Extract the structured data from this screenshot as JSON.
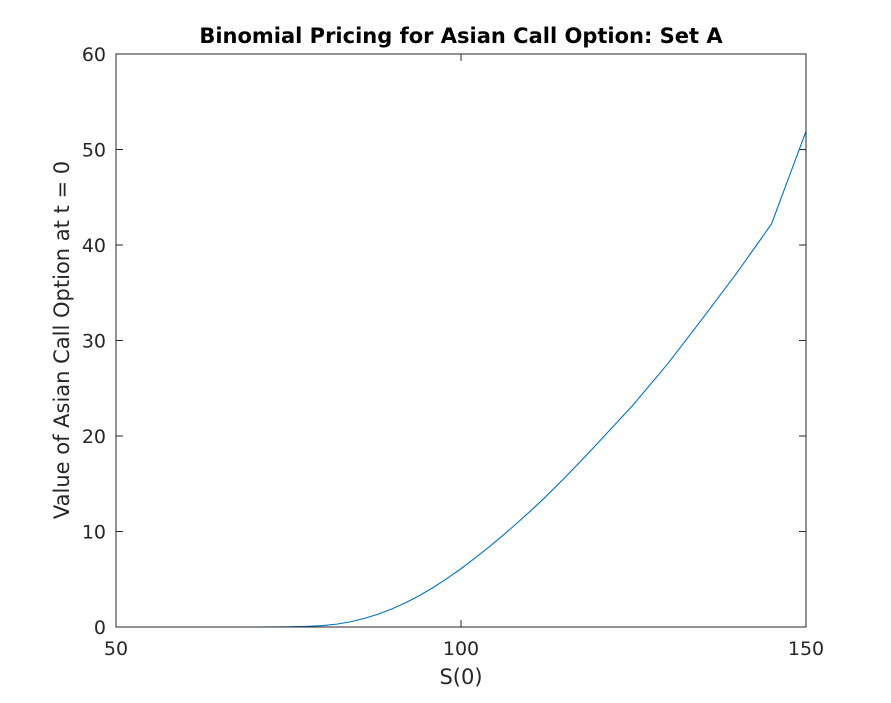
{
  "chart_data": {
    "type": "line",
    "title": "Binomial Pricing for Asian Call Option: Set A",
    "xlabel": "S(0)",
    "ylabel": "Value of Asian Call Option at t = 0",
    "xlim": [
      50,
      150
    ],
    "ylim": [
      0,
      60
    ],
    "xticks": [
      50,
      100,
      150
    ],
    "yticks": [
      0,
      10,
      20,
      30,
      40,
      50,
      60
    ],
    "grid": false,
    "line_color": "#0072BD",
    "series": [
      {
        "x": [
          50,
          60,
          70,
          75,
          78,
          80,
          82,
          84,
          86,
          88,
          90,
          92,
          94,
          96,
          98,
          100,
          102,
          104,
          106,
          108,
          110,
          112,
          115,
          118,
          120,
          125,
          130,
          135,
          140,
          145,
          150
        ],
        "values": [
          0,
          0,
          0,
          0.02,
          0.08,
          0.15,
          0.3,
          0.55,
          0.9,
          1.35,
          1.9,
          2.55,
          3.3,
          4.15,
          5.1,
          6.1,
          7.2,
          8.35,
          9.55,
          10.8,
          12.1,
          13.45,
          15.6,
          17.85,
          19.4,
          23.3,
          27.6,
          32.3,
          37.1,
          42.2,
          51.9
        ]
      }
    ]
  }
}
